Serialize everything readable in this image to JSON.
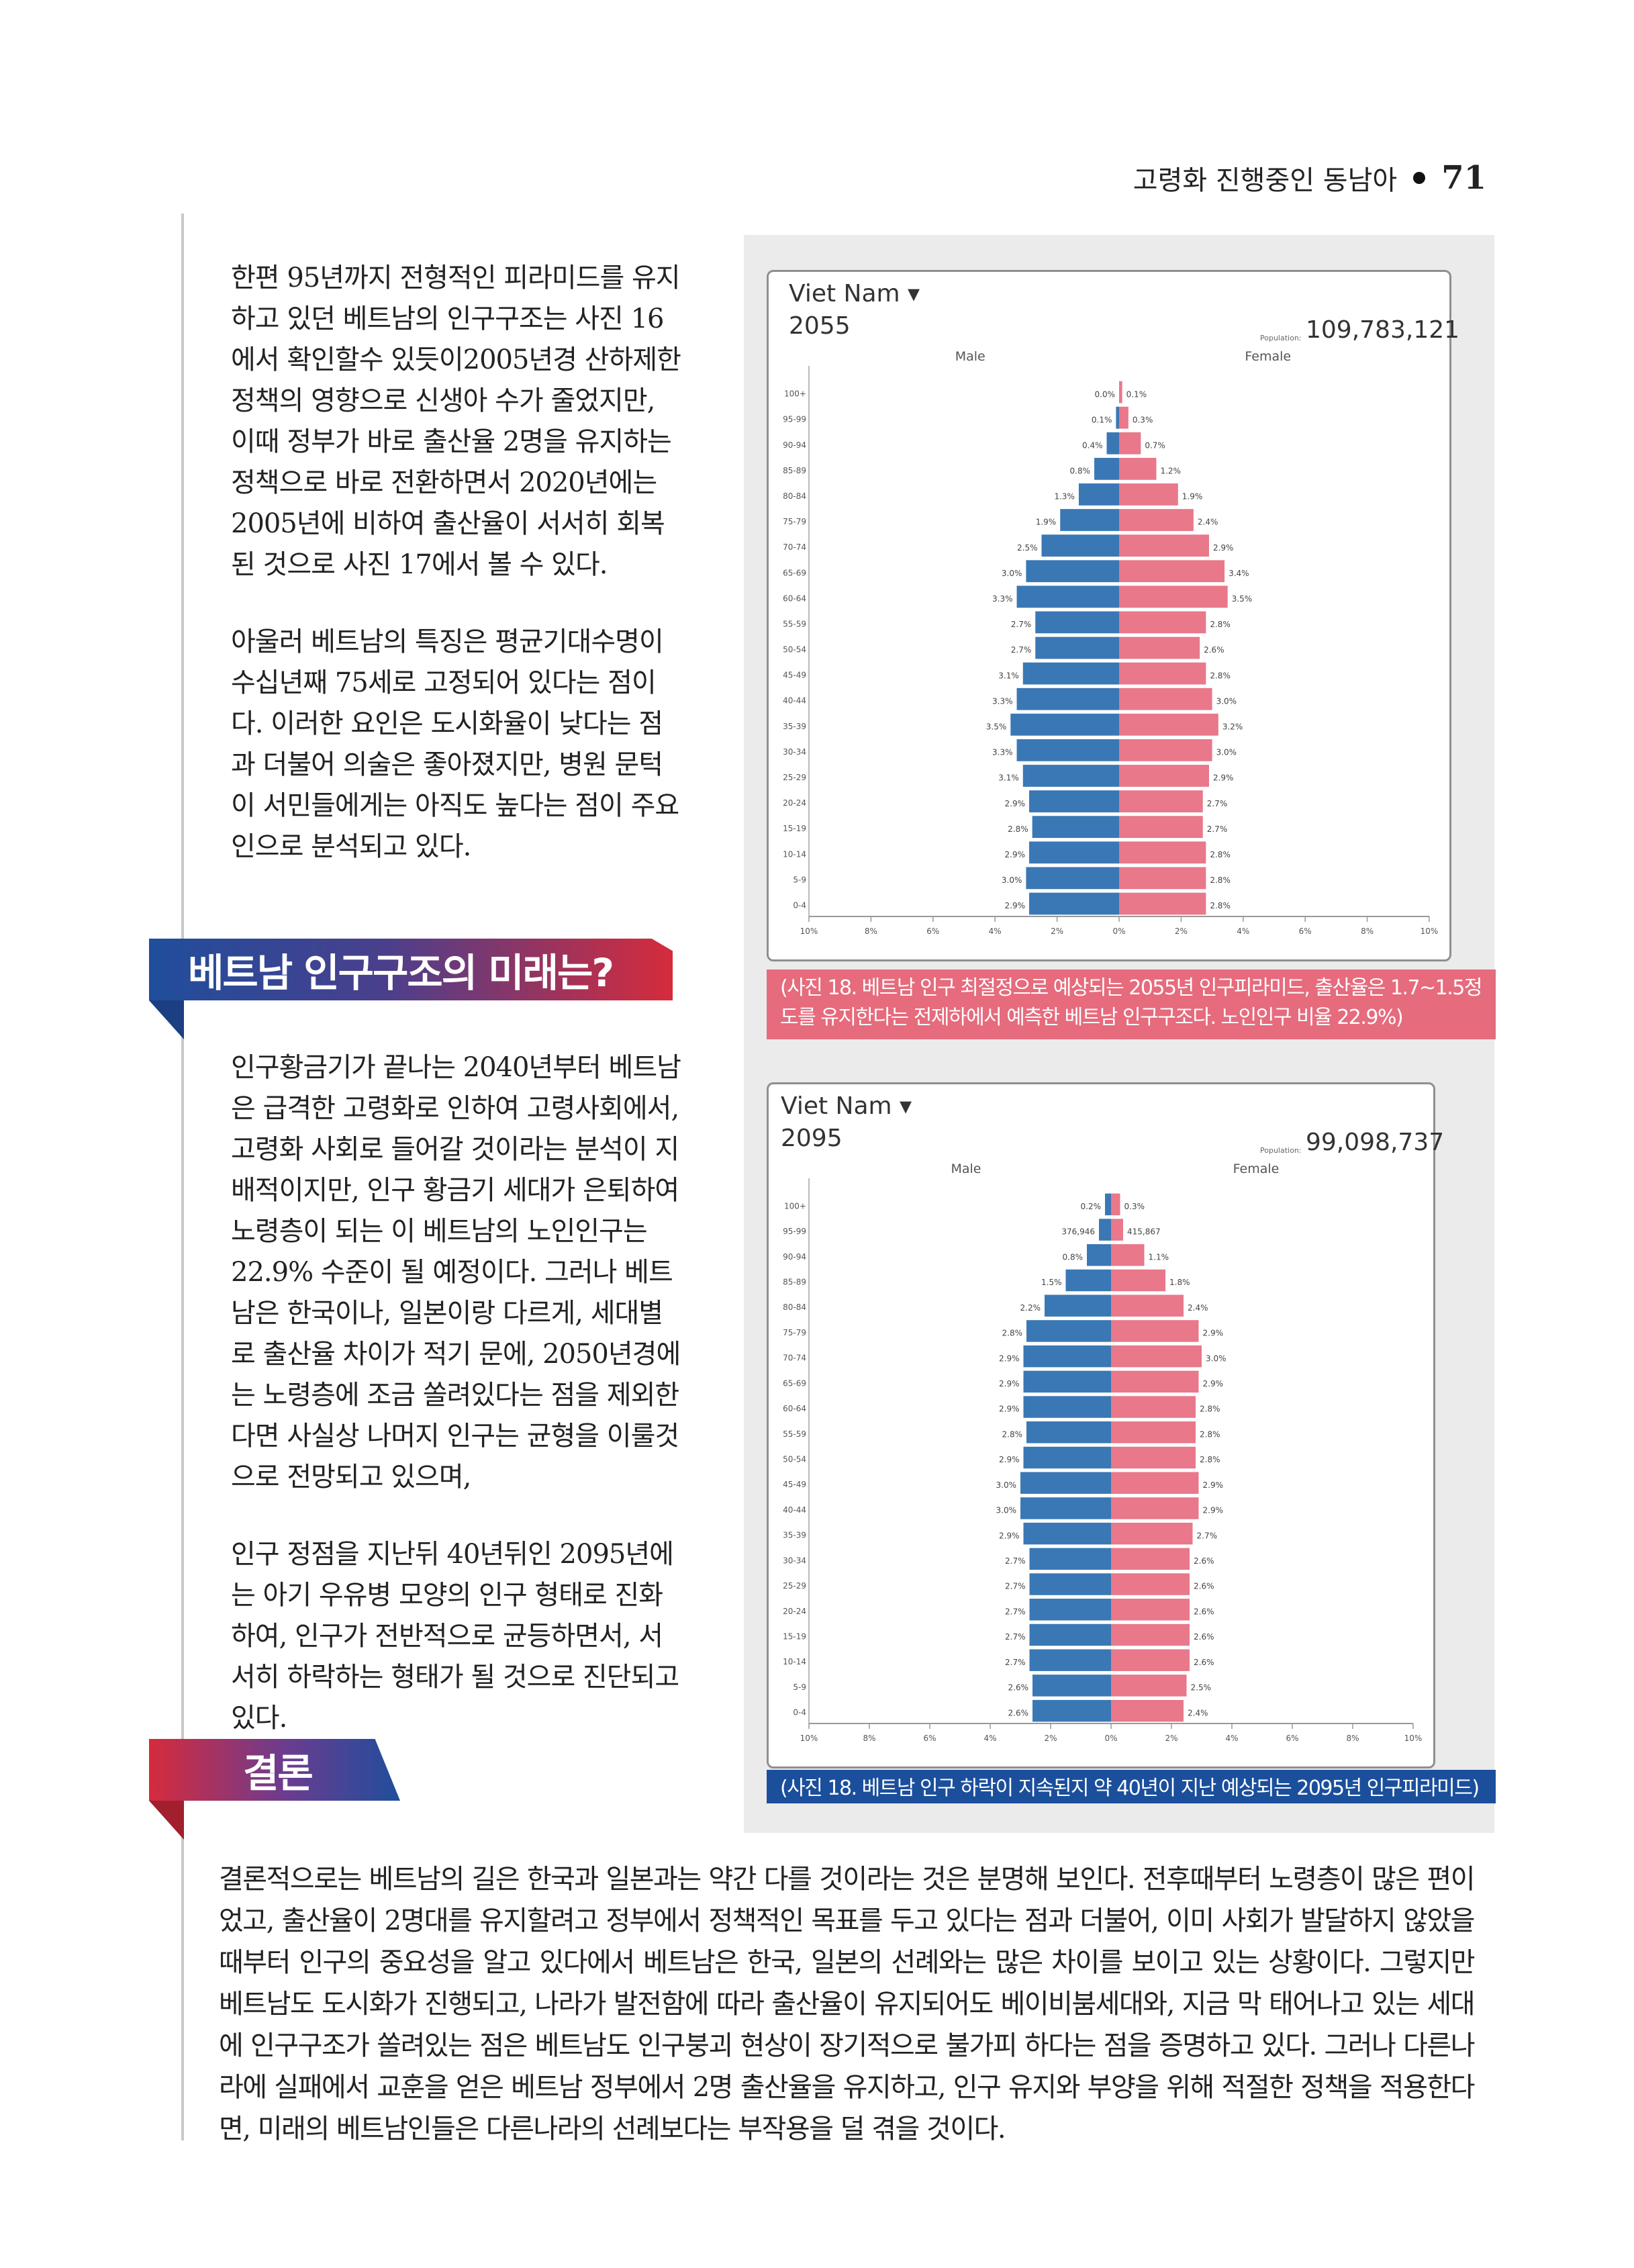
{
  "header": {
    "title": "고령화 진행중인 동남아",
    "page_number": "71"
  },
  "left_column": {
    "para1": "한편 95년까지 전형적인 피라미드를 유지하고 있던 베트남의 인구구조는 사진 16에서 확인할수 있듯이2005년경 산하제한 정책의 영향으로 신생아 수가 줄었지만, 이때 정부가 바로 출산율 2명을 유지하는 정책으로 바로 전환하면서 2020년에는 2005년에 비하여 출산율이 서서히 회복된 것으로 사진 17에서 볼 수 있다.",
    "para2": "아울러 베트남의 특징은 평균기대수명이 수십년째 75세로 고정되어 있다는 점이다. 이러한 요인은 도시화율이 낮다는 점과 더불어 의술은 좋아졌지만, 병원 문턱이 서민들에게는 아직도 높다는 점이 주요인으로 분석되고 있다.",
    "section1_title": "베트남 인구구조의 미래는?",
    "para3": "인구황금기가 끝나는 2040년부터 베트남은 급격한 고령화로 인하여 고령사회에서, 고령화 사회로 들어갈 것이라는 분석이 지배적이지만, 인구 황금기 세대가 은퇴하여 노령층이 되는 이 베트남의 노인인구는 22.9% 수준이 될 예정이다. 그러나 베트남은 한국이나, 일본이랑 다르게, 세대별로 출산율 차이가 적기 문에, 2050년경에는 노령층에 조금 쏠려있다는 점을 제외한다면 사실상 나머지 인구는 균형을 이룰것으로 전망되고 있으며,",
    "para4": "인구 정점을 지난뒤 40년뒤인 2095년에는 아기 우유병 모양의 인구 형태로 진화하여, 인구가 전반적으로 균등하면서, 서서히 하락하는 형태가 될 것으로 진단되고 있다.",
    "section2_title": "결론"
  },
  "conclusion": "결론적으로는 베트남의 길은 한국과 일본과는 약간 다를 것이라는 것은 분명해 보인다. 전후때부터 노령층이 많은 편이었고, 출산율이 2명대를 유지할려고 정부에서 정책적인 목표를 두고 있다는 점과 더불어, 이미 사회가 발달하지 않았을때부터 인구의 중요성을 알고 있다에서 베트남은 한국, 일본의 선례와는 많은 차이를 보이고 있는 상황이다. 그렇지만 베트남도 도시화가 진행되고, 나라가 발전함에 따라 출산율이 유지되어도 베이비붐세대와, 지금 막 태어나고 있는 세대에 인구구조가 쏠려있는 점은 베트남도 인구붕괴 현상이 장기적으로 불가피 하다는 점을 증명하고 있다. 그러나 다른나라에 실패에서 교훈을 얻은 베트남 정부에서 2명 출산율을 유지하고, 인구 유지와 부양을 위해 적절한 정책을 적용한다면, 미래의 베트남인들은 다른나라의 선례보다는 부작용을 덜 겪을 것이다.",
  "figure1": {
    "country": "Viet Nam ▾",
    "year": "2055",
    "population_label": "Population:",
    "population": "109,783,121",
    "caption": "(사진 18. 베트남 인구 최절정으로 예상되는 2055년 인구피라미드, 출산율은 1.7~1.5정도를 유지한다는 전제하에서 예측한 베트남 인구구조다. 노인인구 비율 22.9%)"
  },
  "figure2": {
    "country": "Viet Nam ▾",
    "year": "2095",
    "population_label": "Population:",
    "population": "99,098,737",
    "caption": "(사진 18. 베트남 인구 하락이 지속된지 약 40년이 지난 예상되는 2095년 인구피라미드)"
  },
  "chart_data": [
    {
      "type": "bar",
      "title": "Viet Nam 2055",
      "male_label": "Male",
      "female_label": "Female",
      "categories": [
        "100+",
        "95-99",
        "90-94",
        "85-89",
        "80-84",
        "75-79",
        "70-74",
        "65-69",
        "60-64",
        "55-59",
        "50-54",
        "45-49",
        "40-44",
        "35-39",
        "30-34",
        "25-29",
        "20-24",
        "15-19",
        "10-14",
        "5-9",
        "0-4"
      ],
      "series": [
        {
          "name": "Male",
          "values": [
            0.0,
            0.1,
            0.4,
            0.8,
            1.3,
            1.9,
            2.5,
            3.0,
            3.3,
            2.7,
            2.7,
            3.1,
            3.3,
            3.5,
            3.3,
            3.1,
            2.9,
            2.8,
            2.9,
            3.0,
            2.9
          ]
        },
        {
          "name": "Female",
          "values": [
            0.1,
            0.3,
            0.7,
            1.2,
            1.9,
            2.4,
            2.9,
            3.4,
            3.5,
            2.8,
            2.6,
            2.8,
            3.0,
            3.2,
            3.0,
            2.9,
            2.7,
            2.7,
            2.8,
            2.8,
            2.8
          ]
        }
      ],
      "data_labels_male": [
        "0.0%",
        "0.1%",
        "0.4%",
        "0.8%",
        "1.3%",
        "1.9%",
        "2.5%",
        "3.0%",
        "3.3%",
        "2.7%",
        "2.7%",
        "3.1%",
        "3.3%",
        "3.5%",
        "3.3%",
        "3.1%",
        "2.9%",
        "2.8%",
        "2.9%",
        "3.0%",
        "2.9%"
      ],
      "data_labels_female": [
        "0.1%",
        "0.3%",
        "0.7%",
        "1.2%",
        "1.9%",
        "2.4%",
        "2.9%",
        "3.4%",
        "3.5%",
        "2.8%",
        "2.6%",
        "2.8%",
        "3.0%",
        "3.2%",
        "3.0%",
        "2.9%",
        "2.7%",
        "2.7%",
        "2.8%",
        "2.8%",
        "2.8%"
      ],
      "xticks": [
        "10%",
        "8%",
        "6%",
        "4%",
        "2%",
        "0%",
        "2%",
        "4%",
        "6%",
        "8%",
        "10%"
      ],
      "xlim": [
        -10,
        10
      ],
      "colors": {
        "male": "#3a78b5",
        "female": "#e8788a"
      }
    },
    {
      "type": "bar",
      "title": "Viet Nam 2095",
      "male_label": "Male",
      "female_label": "Female",
      "categories": [
        "100+",
        "95-99",
        "90-94",
        "85-89",
        "80-84",
        "75-79",
        "70-74",
        "65-69",
        "60-64",
        "55-59",
        "50-54",
        "45-49",
        "40-44",
        "35-39",
        "30-34",
        "25-29",
        "20-24",
        "15-19",
        "10-14",
        "5-9",
        "0-4"
      ],
      "series": [
        {
          "name": "Male",
          "values": [
            0.2,
            0.4,
            0.8,
            1.5,
            2.2,
            2.8,
            2.9,
            2.9,
            2.9,
            2.8,
            2.9,
            3.0,
            3.0,
            2.9,
            2.7,
            2.7,
            2.7,
            2.7,
            2.7,
            2.6,
            2.6
          ]
        },
        {
          "name": "Female",
          "values": [
            0.3,
            0.4,
            1.1,
            1.8,
            2.4,
            2.9,
            3.0,
            2.9,
            2.8,
            2.8,
            2.8,
            2.9,
            2.9,
            2.7,
            2.6,
            2.6,
            2.6,
            2.6,
            2.6,
            2.5,
            2.4
          ]
        }
      ],
      "data_labels_male": [
        "0.2%",
        "376,946",
        "0.8%",
        "1.5%",
        "2.2%",
        "2.8%",
        "2.9%",
        "2.9%",
        "2.9%",
        "2.8%",
        "2.9%",
        "3.0%",
        "3.0%",
        "2.9%",
        "2.7%",
        "2.7%",
        "2.7%",
        "2.7%",
        "2.7%",
        "2.6%",
        "2.6%"
      ],
      "data_labels_female": [
        "0.3%",
        "415,867",
        "1.1%",
        "1.8%",
        "2.4%",
        "2.9%",
        "3.0%",
        "2.9%",
        "2.8%",
        "2.8%",
        "2.8%",
        "2.9%",
        "2.9%",
        "2.7%",
        "2.6%",
        "2.6%",
        "2.6%",
        "2.6%",
        "2.6%",
        "2.5%",
        "2.4%"
      ],
      "xticks": [
        "10%",
        "8%",
        "6%",
        "4%",
        "2%",
        "0%",
        "2%",
        "4%",
        "6%",
        "8%",
        "10%"
      ],
      "xlim": [
        -10,
        10
      ],
      "colors": {
        "male": "#3a78b5",
        "female": "#e8788a"
      }
    }
  ]
}
